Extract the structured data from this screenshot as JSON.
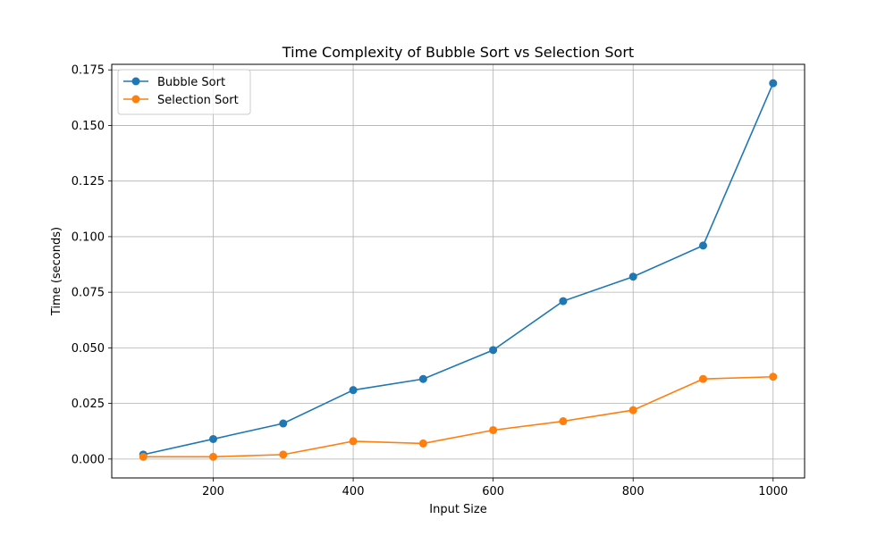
{
  "chart_data": {
    "type": "line",
    "title": "Time Complexity of Bubble Sort vs Selection Sort",
    "xlabel": "Input Size",
    "ylabel": "Time (seconds)",
    "x": [
      100,
      200,
      300,
      400,
      500,
      600,
      700,
      800,
      900,
      1000
    ],
    "xlim": [
      55,
      1045
    ],
    "ylim": [
      -0.0085,
      0.1775
    ],
    "xticks": [
      200,
      400,
      600,
      800,
      1000
    ],
    "xtick_labels": [
      "200",
      "400",
      "600",
      "800",
      "1000"
    ],
    "yticks": [
      0.0,
      0.025,
      0.05,
      0.075,
      0.1,
      0.125,
      0.15,
      0.175
    ],
    "ytick_labels": [
      "0.000",
      "0.025",
      "0.050",
      "0.075",
      "0.100",
      "0.125",
      "0.150",
      "0.175"
    ],
    "grid": true,
    "legend_position": "top-left",
    "series": [
      {
        "name": "Bubble Sort",
        "color": "#1f77b4",
        "marker": "circle",
        "values": [
          0.002,
          0.009,
          0.016,
          0.031,
          0.036,
          0.049,
          0.071,
          0.082,
          0.096,
          0.169
        ]
      },
      {
        "name": "Selection Sort",
        "color": "#ff7f0e",
        "marker": "circle",
        "values": [
          0.001,
          0.001,
          0.002,
          0.008,
          0.007,
          0.013,
          0.017,
          0.022,
          0.036,
          0.037
        ]
      }
    ]
  }
}
